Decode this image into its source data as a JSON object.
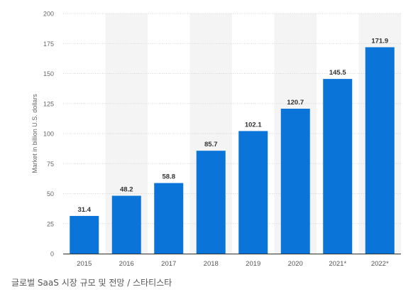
{
  "chart_data": {
    "type": "bar",
    "ylabel": "Market in billion U.S. dollars",
    "categories": [
      "2015",
      "2016",
      "2017",
      "2018",
      "2019",
      "2020",
      "2021*",
      "2022*"
    ],
    "values": [
      31.4,
      48.2,
      58.8,
      85.7,
      102.1,
      120.7,
      145.5,
      171.9
    ],
    "value_labels": [
      "31.4",
      "48.2",
      "58.8",
      "85.7",
      "102.1",
      "120.7",
      "145.5",
      "171.9"
    ],
    "ylim": [
      0,
      200
    ],
    "yticks": [
      "0",
      "25",
      "50",
      "75",
      "100",
      "125",
      "150",
      "175",
      "200"
    ],
    "grid": true,
    "bar_color": "#0a74d8",
    "band_color": "#f4f4f4"
  },
  "caption": "글로벌 SaaS 시장 규모 및 전망 / 스타티스타"
}
